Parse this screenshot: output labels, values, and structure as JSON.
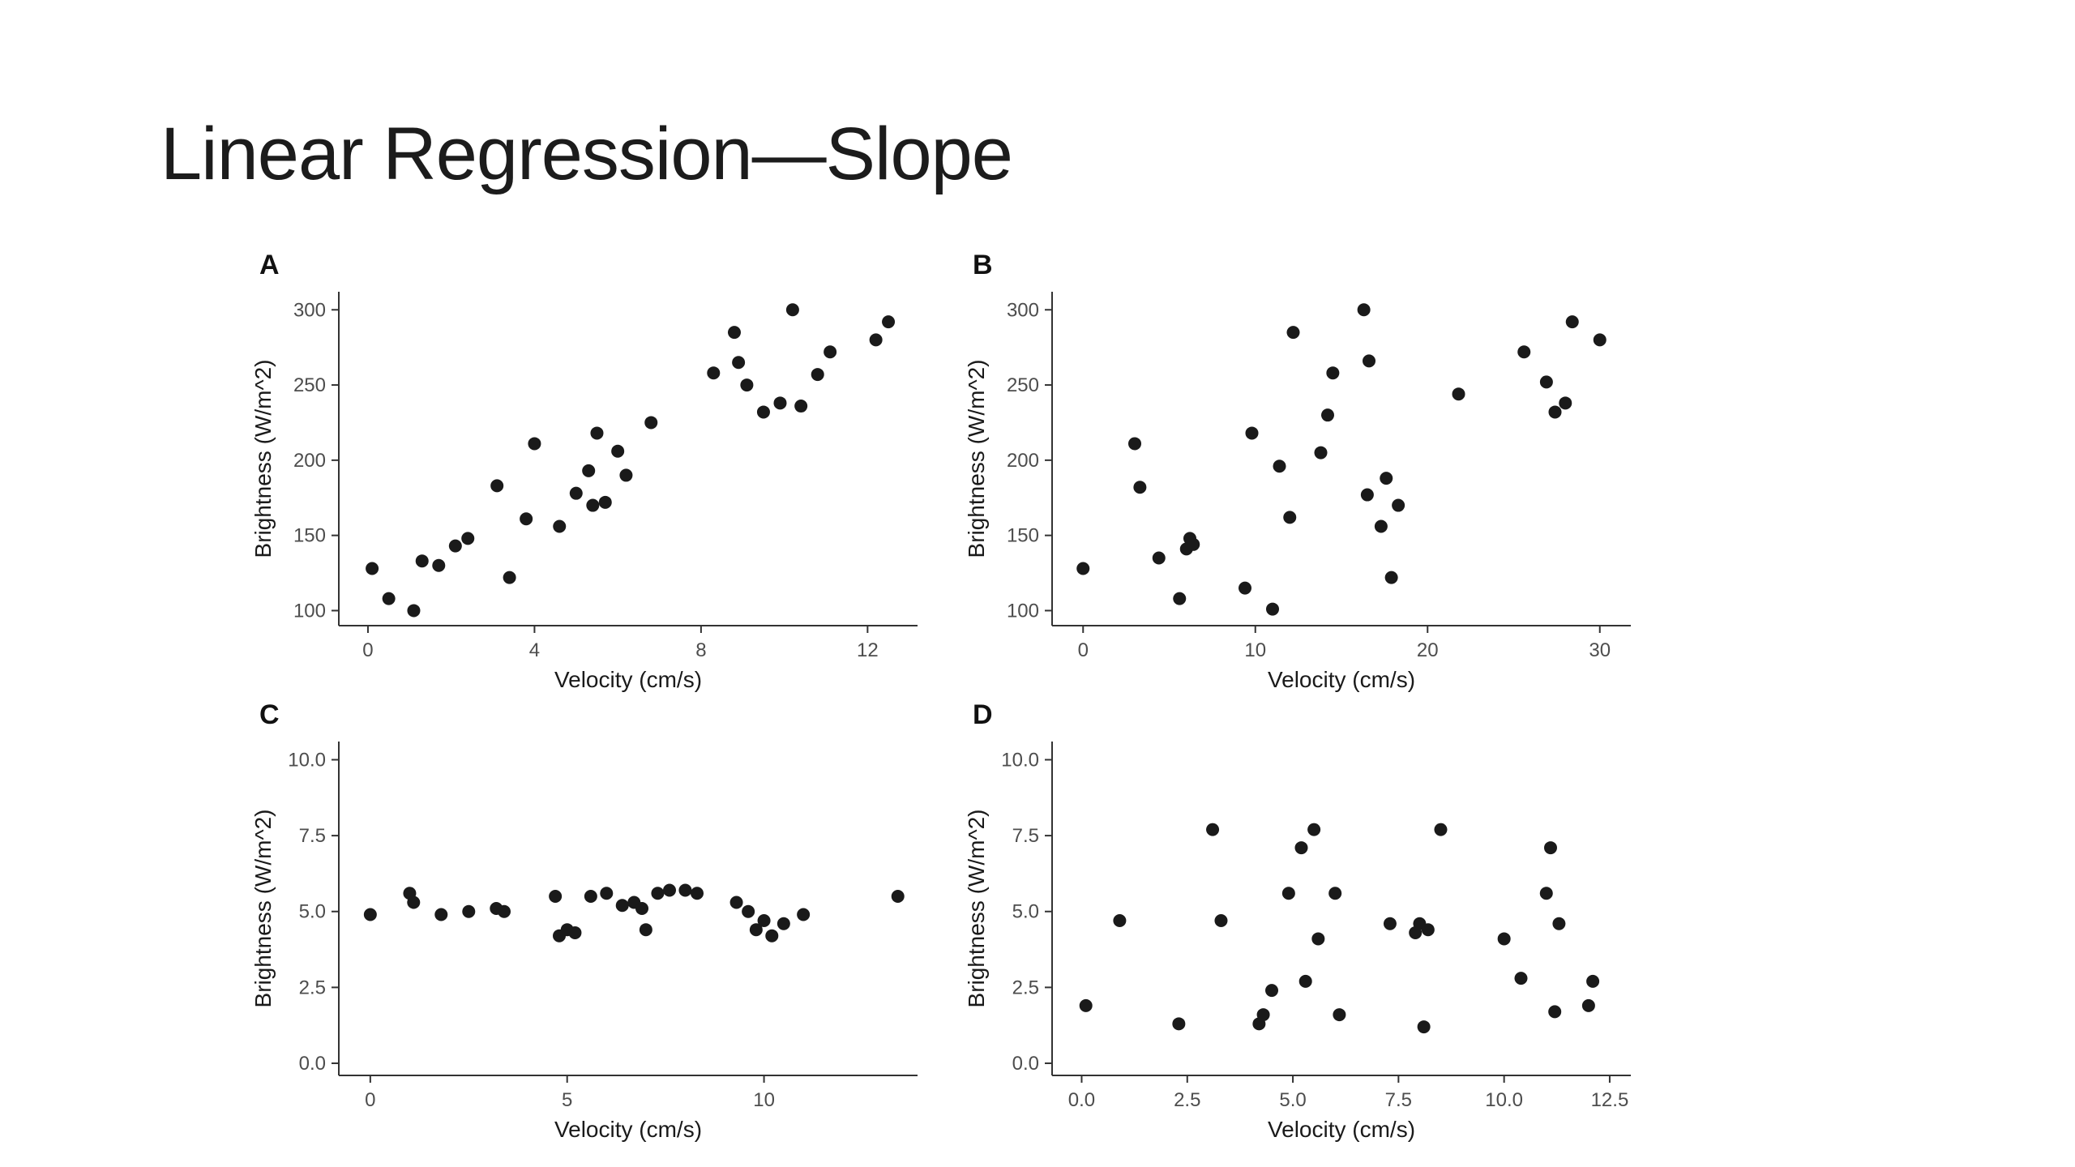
{
  "slide": {
    "title": "Linear Regression—Slope",
    "background_color": "#ffffff",
    "title_color": "#1c1c1c"
  },
  "chart_data": [
    {
      "id": "A",
      "label": "A",
      "type": "scatter",
      "xlabel": "Velocity (cm/s)",
      "ylabel": "Brightness (W/m^2)",
      "xlim": [
        -0.7,
        13.2
      ],
      "ylim": [
        90,
        312
      ],
      "xticks": [
        0,
        4,
        8,
        12
      ],
      "xtick_labels": [
        "0",
        "4",
        "8",
        "12"
      ],
      "yticks": [
        100,
        150,
        200,
        250,
        300
      ],
      "ytick_labels": [
        "100",
        "150",
        "200",
        "250",
        "300"
      ],
      "grid": false,
      "legend": false,
      "point_color": "#1a1a1a",
      "points": [
        [
          0.1,
          128
        ],
        [
          0.5,
          108
        ],
        [
          1.1,
          100
        ],
        [
          1.3,
          133
        ],
        [
          1.7,
          130
        ],
        [
          2.1,
          143
        ],
        [
          2.4,
          148
        ],
        [
          3.1,
          183
        ],
        [
          3.4,
          122
        ],
        [
          3.8,
          161
        ],
        [
          4.0,
          211
        ],
        [
          4.6,
          156
        ],
        [
          5.0,
          178
        ],
        [
          5.3,
          193
        ],
        [
          5.4,
          170
        ],
        [
          5.5,
          218
        ],
        [
          5.7,
          172
        ],
        [
          6.0,
          206
        ],
        [
          6.2,
          190
        ],
        [
          6.8,
          225
        ],
        [
          8.3,
          258
        ],
        [
          8.8,
          285
        ],
        [
          8.9,
          265
        ],
        [
          9.1,
          250
        ],
        [
          9.5,
          232
        ],
        [
          9.9,
          238
        ],
        [
          10.2,
          300
        ],
        [
          10.4,
          236
        ],
        [
          10.8,
          257
        ],
        [
          11.1,
          272
        ],
        [
          12.2,
          280
        ],
        [
          12.5,
          292
        ]
      ]
    },
    {
      "id": "B",
      "label": "B",
      "type": "scatter",
      "xlabel": "Velocity (cm/s)",
      "ylabel": "Brightness (W/m^2)",
      "xlim": [
        -1.8,
        31.8
      ],
      "ylim": [
        90,
        312
      ],
      "xticks": [
        0,
        10,
        20,
        30
      ],
      "xtick_labels": [
        "0",
        "10",
        "20",
        "30"
      ],
      "yticks": [
        100,
        150,
        200,
        250,
        300
      ],
      "ytick_labels": [
        "100",
        "150",
        "200",
        "250",
        "300"
      ],
      "grid": false,
      "legend": false,
      "point_color": "#1a1a1a",
      "points": [
        [
          0.0,
          128
        ],
        [
          3.0,
          211
        ],
        [
          3.3,
          182
        ],
        [
          4.4,
          135
        ],
        [
          5.6,
          108
        ],
        [
          6.0,
          141
        ],
        [
          6.2,
          148
        ],
        [
          6.4,
          144
        ],
        [
          9.4,
          115
        ],
        [
          9.8,
          218
        ],
        [
          11.0,
          101
        ],
        [
          11.4,
          196
        ],
        [
          12.0,
          162
        ],
        [
          12.2,
          285
        ],
        [
          13.8,
          205
        ],
        [
          14.2,
          230
        ],
        [
          14.5,
          258
        ],
        [
          16.3,
          300
        ],
        [
          16.5,
          177
        ],
        [
          16.6,
          266
        ],
        [
          17.3,
          156
        ],
        [
          17.6,
          188
        ],
        [
          17.9,
          122
        ],
        [
          18.3,
          170
        ],
        [
          21.8,
          244
        ],
        [
          25.6,
          272
        ],
        [
          26.9,
          252
        ],
        [
          27.4,
          232
        ],
        [
          28.0,
          238
        ],
        [
          28.4,
          292
        ],
        [
          30.0,
          280
        ]
      ]
    },
    {
      "id": "C",
      "label": "C",
      "type": "scatter",
      "xlabel": "Velocity (cm/s)",
      "ylabel": "Brightness (W/m^2)",
      "xlim": [
        -0.8,
        13.9
      ],
      "ylim": [
        -0.4,
        10.6
      ],
      "xticks": [
        0,
        5,
        10
      ],
      "xtick_labels": [
        "0",
        "5",
        "10"
      ],
      "yticks": [
        0,
        2.5,
        5,
        7.5,
        10
      ],
      "ytick_labels": [
        "0.0",
        "2.5",
        "5.0",
        "7.5",
        "10.0"
      ],
      "grid": false,
      "legend": false,
      "point_color": "#1a1a1a",
      "points": [
        [
          0.0,
          4.9
        ],
        [
          1.0,
          5.6
        ],
        [
          1.1,
          5.3
        ],
        [
          1.8,
          4.9
        ],
        [
          2.5,
          5.0
        ],
        [
          3.2,
          5.1
        ],
        [
          3.4,
          5.0
        ],
        [
          4.7,
          5.5
        ],
        [
          4.8,
          4.2
        ],
        [
          5.0,
          4.4
        ],
        [
          5.2,
          4.3
        ],
        [
          5.6,
          5.5
        ],
        [
          6.0,
          5.6
        ],
        [
          6.4,
          5.2
        ],
        [
          6.7,
          5.3
        ],
        [
          6.9,
          5.1
        ],
        [
          7.0,
          4.4
        ],
        [
          7.3,
          5.6
        ],
        [
          7.6,
          5.7
        ],
        [
          8.0,
          5.7
        ],
        [
          8.3,
          5.6
        ],
        [
          9.3,
          5.3
        ],
        [
          9.6,
          5.0
        ],
        [
          9.8,
          4.4
        ],
        [
          10.0,
          4.7
        ],
        [
          10.2,
          4.2
        ],
        [
          10.5,
          4.6
        ],
        [
          11.0,
          4.9
        ],
        [
          13.4,
          5.5
        ]
      ]
    },
    {
      "id": "D",
      "label": "D",
      "type": "scatter",
      "xlabel": "Velocity (cm/s)",
      "ylabel": "Brightness (W/m^2)",
      "xlim": [
        -0.7,
        13.0
      ],
      "ylim": [
        -0.4,
        10.6
      ],
      "xticks": [
        0,
        2.5,
        5,
        7.5,
        10,
        12.5
      ],
      "xtick_labels": [
        "0.0",
        "2.5",
        "5.0",
        "7.5",
        "10.0",
        "12.5"
      ],
      "yticks": [
        0,
        2.5,
        5,
        7.5,
        10
      ],
      "ytick_labels": [
        "0.0",
        "2.5",
        "5.0",
        "7.5",
        "10.0"
      ],
      "grid": false,
      "legend": false,
      "point_color": "#1a1a1a",
      "points": [
        [
          0.1,
          1.9
        ],
        [
          0.9,
          4.7
        ],
        [
          2.3,
          1.3
        ],
        [
          3.1,
          7.7
        ],
        [
          3.3,
          4.7
        ],
        [
          4.2,
          1.3
        ],
        [
          4.3,
          1.6
        ],
        [
          4.5,
          2.4
        ],
        [
          4.9,
          5.6
        ],
        [
          5.2,
          7.1
        ],
        [
          5.3,
          2.7
        ],
        [
          5.5,
          7.7
        ],
        [
          5.6,
          4.1
        ],
        [
          6.0,
          5.6
        ],
        [
          6.1,
          1.6
        ],
        [
          7.3,
          4.6
        ],
        [
          7.9,
          4.3
        ],
        [
          8.0,
          4.6
        ],
        [
          8.1,
          1.2
        ],
        [
          8.2,
          4.4
        ],
        [
          8.5,
          7.7
        ],
        [
          10.0,
          4.1
        ],
        [
          10.4,
          2.8
        ],
        [
          11.0,
          5.6
        ],
        [
          11.1,
          7.1
        ],
        [
          11.2,
          1.7
        ],
        [
          11.3,
          4.6
        ],
        [
          12.0,
          1.9
        ],
        [
          12.1,
          2.7
        ]
      ]
    }
  ]
}
